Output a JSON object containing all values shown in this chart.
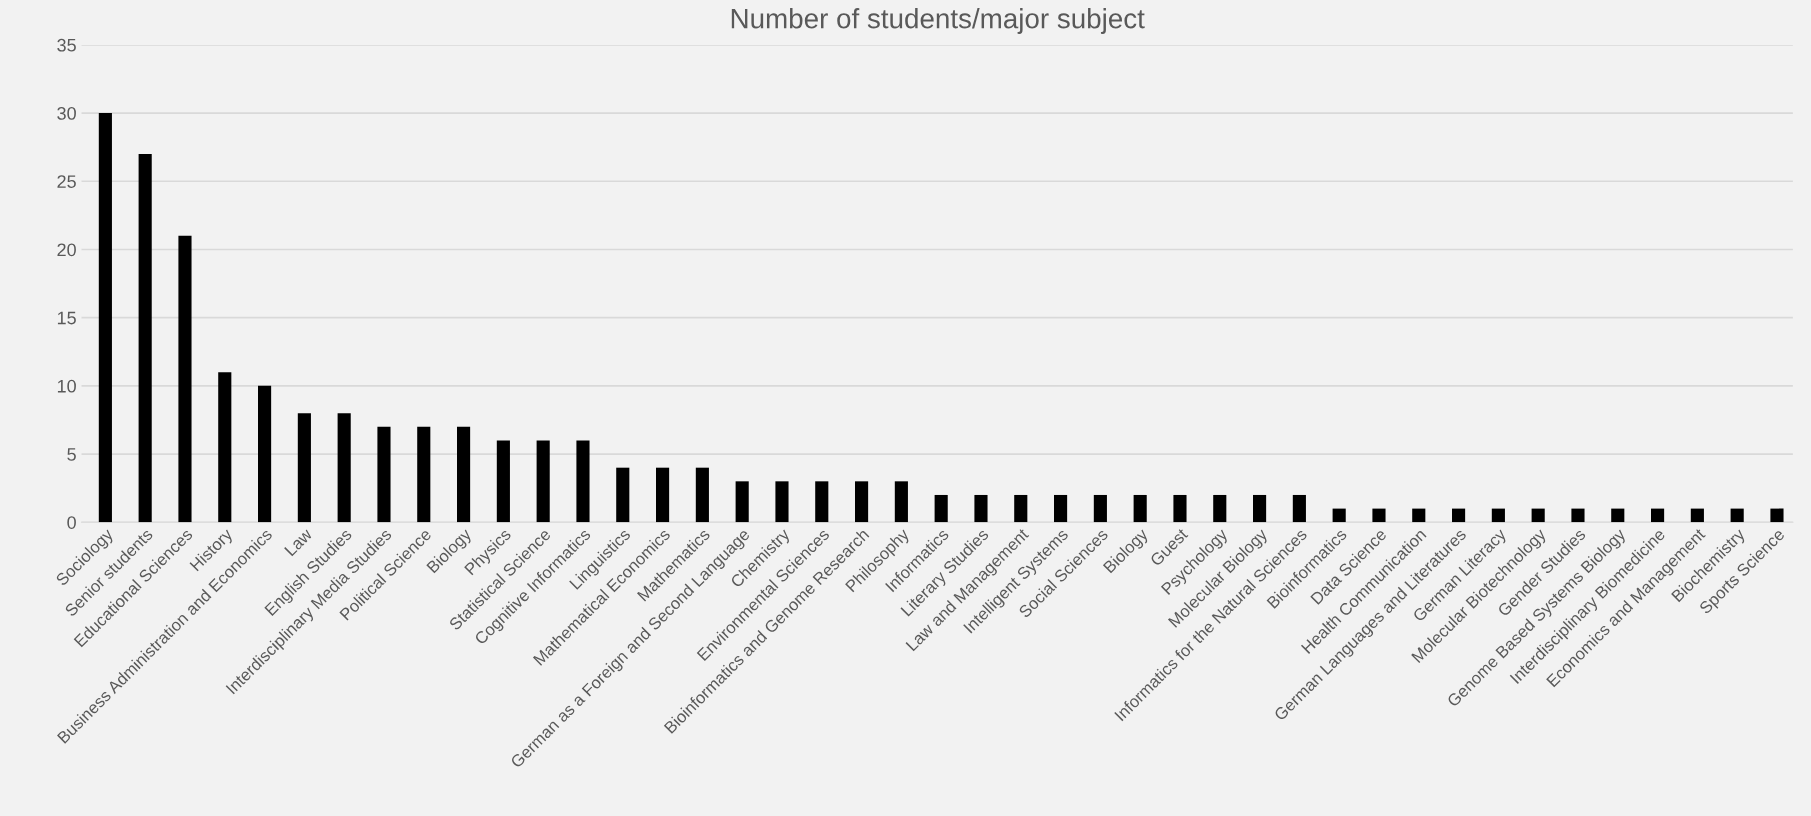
{
  "chart_data": {
    "type": "bar",
    "title": "Number of students/major subject",
    "categories": [
      "Sociology",
      "Senior students",
      "Educational Sciences",
      "History",
      "Business Administration and Economics",
      "Law",
      "English Studies",
      "Interdisciplinary Media Studies",
      "Political Science",
      "Biology",
      "Physics",
      "Statistical Science",
      "Cognitive Informatics",
      "Linguistics",
      "Mathematical Economics",
      "Mathematics",
      "German as a Foreign and Second Language",
      "Chemistry",
      "Environmental Sciences",
      "Bioinformatics and Genome Research",
      "Philosophy",
      "Informatics",
      "Literary Studies",
      "Law and Management",
      "Intelligent Systems",
      "Social Sciences",
      "Biology",
      "Guest",
      "Psychology",
      "Molecular Biology",
      "Informatics for the Natural Sciences",
      "Bioinformatics",
      "Data Science",
      "Health Communication",
      "German Languages and Literatures",
      "German Literacy",
      "Molecular Biotechnology",
      "Gender Studies",
      "Genome Based Systems Biology",
      "Interdisciplinary Biomedicine",
      "Economics and Management",
      "Biochemistry",
      "Sports Science"
    ],
    "values": [
      30,
      27,
      21,
      11,
      10,
      8,
      8,
      7,
      7,
      7,
      6,
      6,
      6,
      4,
      4,
      4,
      3,
      3,
      3,
      3,
      3,
      2,
      2,
      2,
      2,
      2,
      2,
      2,
      2,
      2,
      2,
      1,
      1,
      1,
      1,
      1,
      1,
      1,
      1,
      1,
      1,
      1,
      1
    ],
    "color": "#000000",
    "ylim": [
      0,
      35
    ],
    "yticks": [
      0,
      5,
      10,
      15,
      20,
      25,
      30,
      35
    ],
    "grid": "y"
  }
}
